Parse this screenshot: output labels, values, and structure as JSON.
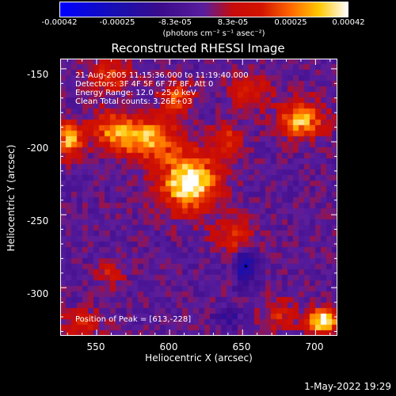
{
  "colorbar": {
    "ticks": [
      "-0.00042",
      "-0.00025",
      "-8.3e-05",
      "8.3e-05",
      "0.00025",
      "0.00042"
    ],
    "units": "(photons cm⁻² s⁻¹ asec⁻²)",
    "range": [
      -0.00042,
      0.00042
    ]
  },
  "info": {
    "time": "21-Aug-2005 11:15:36.000 to 11:19:40.000",
    "detectors": "Detectors: 3F 4F 5F 6F 7F 8F, Att 0",
    "energy": "Energy Range: 12.0 - 25.0 keV",
    "method": "Clean     Total counts: 3.26E+03",
    "peak": "Position of Peak = [613,-228]"
  },
  "footer": {
    "date": "1-May-2022 19:29"
  },
  "chart_data": {
    "type": "heatmap",
    "title": "Reconstructed RHESSI Image",
    "xlabel": "Heliocentric X (arcsec)",
    "ylabel": "Heliocentric Y (arcsec)",
    "x_ticks": [
      "550",
      "600",
      "650",
      "700"
    ],
    "y_ticks": [
      "-150",
      "-200",
      "-250",
      "-300"
    ],
    "xlim": [
      525,
      715
    ],
    "ylim": [
      -333,
      -143
    ],
    "peak": [
      613,
      -228
    ],
    "sources": [
      {
        "x": 613,
        "y": -228,
        "sx": 14,
        "sy": 14,
        "amp": 1.0
      },
      {
        "x": 585,
        "y": -198,
        "sx": 14,
        "sy": 10,
        "amp": 0.75
      },
      {
        "x": 560,
        "y": -192,
        "sx": 10,
        "sy": 9,
        "amp": 0.55
      },
      {
        "x": 560,
        "y": -155,
        "sx": 12,
        "sy": 8,
        "amp": 0.45
      },
      {
        "x": 532,
        "y": -198,
        "sx": 6,
        "sy": 8,
        "amp": 0.85
      },
      {
        "x": 605,
        "y": -170,
        "sx": 8,
        "sy": 8,
        "amp": 0.5
      },
      {
        "x": 640,
        "y": -200,
        "sx": 8,
        "sy": 8,
        "amp": 0.45
      },
      {
        "x": 690,
        "y": -185,
        "sx": 11,
        "sy": 9,
        "amp": 0.75
      },
      {
        "x": 655,
        "y": -165,
        "sx": 10,
        "sy": 8,
        "amp": 0.4
      },
      {
        "x": 645,
        "y": -265,
        "sx": 9,
        "sy": 9,
        "amp": 0.45
      },
      {
        "x": 705,
        "y": -323,
        "sx": 8,
        "sy": 6,
        "amp": 0.95
      },
      {
        "x": 540,
        "y": -325,
        "sx": 10,
        "sy": 7,
        "amp": 0.35
      },
      {
        "x": 560,
        "y": -290,
        "sx": 6,
        "sy": 6,
        "amp": 0.35
      },
      {
        "x": 675,
        "y": -318,
        "sx": 8,
        "sy": 8,
        "amp": 0.35
      }
    ],
    "negative_sources": [
      {
        "x": 652,
        "y": -285,
        "sx": 5,
        "sy": 9,
        "amp": 0.55
      },
      {
        "x": 640,
        "y": -320,
        "sx": 6,
        "sy": 5,
        "amp": 0.3
      }
    ],
    "color_stops": [
      [
        0.0,
        "#0000ff"
      ],
      [
        0.2,
        "#1a10b0"
      ],
      [
        0.35,
        "#3c0c8c"
      ],
      [
        0.5,
        "#5a1e9e"
      ],
      [
        0.6,
        "#c80b0b"
      ],
      [
        0.7,
        "#d21400"
      ],
      [
        0.8,
        "#ff6600"
      ],
      [
        0.9,
        "#ffc800"
      ],
      [
        1.0,
        "#ffffff"
      ]
    ]
  }
}
